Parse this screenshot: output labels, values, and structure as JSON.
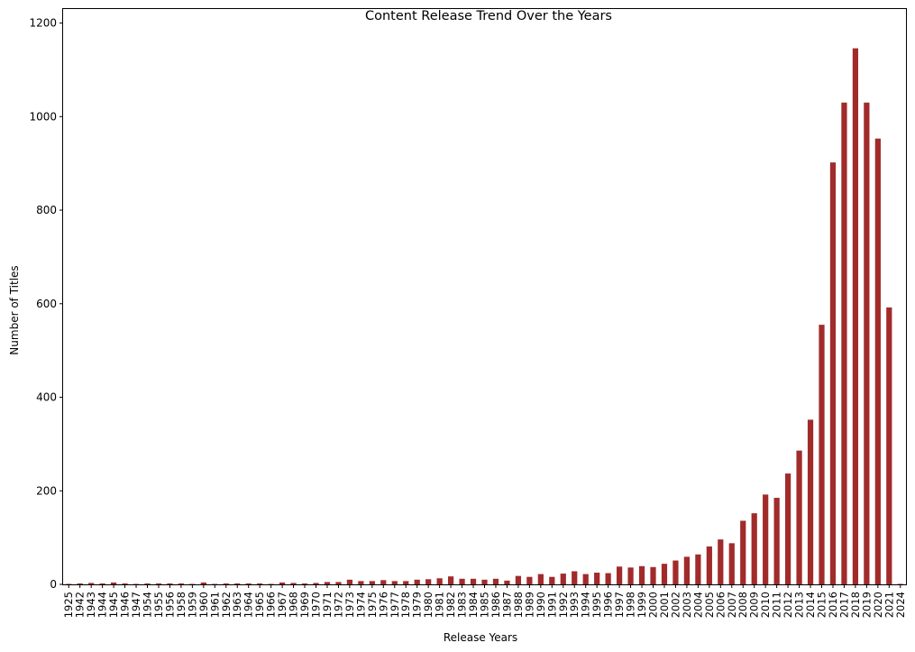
{
  "chart_data": {
    "type": "bar",
    "title": "Content Release Trend Over the Years",
    "xlabel": "Release Years",
    "ylabel": "Number of Titles",
    "ylim": [
      0,
      1200
    ],
    "yticks": [
      0,
      200,
      400,
      600,
      800,
      1000,
      1200
    ],
    "grid": false,
    "legend": "none",
    "bar_color": "#a12b2b",
    "categories": [
      "1925",
      "1942",
      "1943",
      "1944",
      "1945",
      "1946",
      "1947",
      "1954",
      "1955",
      "1956",
      "1958",
      "1959",
      "1960",
      "1961",
      "1962",
      "1963",
      "1964",
      "1965",
      "1966",
      "1967",
      "1968",
      "1969",
      "1970",
      "1971",
      "1972",
      "1973",
      "1974",
      "1975",
      "1976",
      "1977",
      "1978",
      "1979",
      "1980",
      "1981",
      "1982",
      "1983",
      "1984",
      "1985",
      "1986",
      "1987",
      "1988",
      "1989",
      "1990",
      "1991",
      "1992",
      "1993",
      "1994",
      "1995",
      "1996",
      "1997",
      "1998",
      "1999",
      "2000",
      "2001",
      "2002",
      "2003",
      "2004",
      "2005",
      "2006",
      "2007",
      "2008",
      "2009",
      "2010",
      "2011",
      "2012",
      "2013",
      "2014",
      "2015",
      "2016",
      "2017",
      "2018",
      "2019",
      "2020",
      "2021",
      "2024"
    ],
    "values": [
      1,
      2,
      3,
      2,
      4,
      2,
      1,
      2,
      2,
      2,
      2,
      1,
      4,
      1,
      2,
      2,
      2,
      2,
      1,
      4,
      3,
      2,
      3,
      5,
      5,
      10,
      7,
      7,
      9,
      7,
      7,
      10,
      11,
      13,
      17,
      12,
      12,
      10,
      12,
      8,
      18,
      16,
      22,
      16,
      23,
      28,
      22,
      25,
      24,
      38,
      36,
      39,
      37,
      44,
      51,
      59,
      64,
      81,
      96,
      88,
      136,
      152,
      192,
      185,
      237,
      286,
      352,
      555,
      902,
      1030,
      1146,
      1030,
      953,
      592,
      1
    ]
  }
}
